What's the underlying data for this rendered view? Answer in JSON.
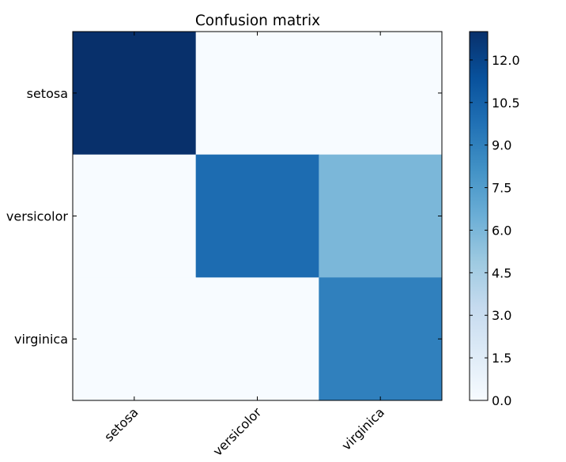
{
  "chart_data": {
    "type": "heatmap",
    "title": "Confusion matrix",
    "x_labels": [
      "setosa",
      "versicolor",
      "virginica"
    ],
    "y_labels": [
      "setosa",
      "versicolor",
      "virginica"
    ],
    "values": [
      [
        13,
        0,
        0
      ],
      [
        0,
        10,
        6
      ],
      [
        0,
        0,
        9
      ]
    ],
    "colormap": "Blues",
    "colorbar": {
      "min": 0,
      "max": 13,
      "ticks": [
        "0.0",
        "1.5",
        "3.0",
        "4.5",
        "6.0",
        "7.5",
        "9.0",
        "10.5",
        "12.0"
      ]
    },
    "grid": false,
    "colorbar_position": "right"
  }
}
